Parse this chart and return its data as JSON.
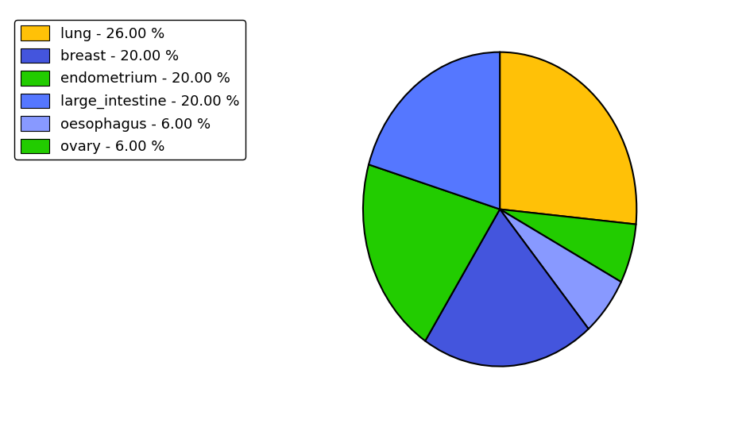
{
  "labels": [
    "lung",
    "ovary",
    "oesophagus",
    "breast",
    "endometrium",
    "large_intestine"
  ],
  "values": [
    26,
    6,
    6,
    20,
    20,
    20
  ],
  "colors": [
    "#FFC107",
    "#22CC00",
    "#8899FF",
    "#4455DD",
    "#22CC00",
    "#5577FF"
  ],
  "legend_labels": [
    "lung - 26.00 %",
    "breast - 20.00 %",
    "endometrium - 20.00 %",
    "large_intestine - 20.00 %",
    "oesophagus - 6.00 %",
    "ovary - 6.00 %"
  ],
  "legend_colors": [
    "#FFC107",
    "#4455DD",
    "#22CC00",
    "#5577FF",
    "#8899FF",
    "#22CC00"
  ],
  "startangle": 90,
  "background_color": "#ffffff",
  "legend_fontsize": 13,
  "edge_color": "black",
  "linewidth": 1.5
}
